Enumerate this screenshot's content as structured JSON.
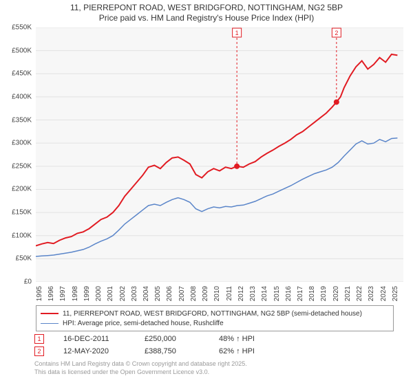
{
  "title_line1": "11, PIERREPONT ROAD, WEST BRIDGFORD, NOTTINGHAM, NG2 5BP",
  "title_line2": "Price paid vs. HM Land Registry's House Price Index (HPI)",
  "chart": {
    "type": "line",
    "background_color": "#f7f7f7",
    "grid_color": "#e2e2e2",
    "xlim_years": [
      1995,
      2026
    ],
    "ylim": [
      0,
      550000
    ],
    "ytick_step": 50000,
    "yticks": [
      "£0",
      "£50K",
      "£100K",
      "£150K",
      "£200K",
      "£250K",
      "£300K",
      "£350K",
      "£400K",
      "£450K",
      "£500K",
      "£550K"
    ],
    "xticks": [
      "1995",
      "1996",
      "1997",
      "1998",
      "1999",
      "2000",
      "2001",
      "2002",
      "2003",
      "2004",
      "2005",
      "2006",
      "2007",
      "2008",
      "2009",
      "2010",
      "2011",
      "2012",
      "2013",
      "2014",
      "2015",
      "2016",
      "2017",
      "2018",
      "2019",
      "2020",
      "2021",
      "2022",
      "2023",
      "2024",
      "2025"
    ],
    "series": [
      {
        "name": "red",
        "label": "11, PIERREPONT ROAD, WEST BRIDGFORD, NOTTINGHAM, NG2 5BP (semi-detached house)",
        "color": "#e11b22",
        "width": 2,
        "points": [
          [
            1995.0,
            78000
          ],
          [
            1995.5,
            82000
          ],
          [
            1996.0,
            85000
          ],
          [
            1996.5,
            83000
          ],
          [
            1997.0,
            90000
          ],
          [
            1997.5,
            95000
          ],
          [
            1998.0,
            98000
          ],
          [
            1998.5,
            105000
          ],
          [
            1999.0,
            108000
          ],
          [
            1999.5,
            115000
          ],
          [
            2000.0,
            125000
          ],
          [
            2000.5,
            135000
          ],
          [
            2001.0,
            140000
          ],
          [
            2001.5,
            150000
          ],
          [
            2002.0,
            165000
          ],
          [
            2002.5,
            185000
          ],
          [
            2003.0,
            200000
          ],
          [
            2003.5,
            215000
          ],
          [
            2004.0,
            230000
          ],
          [
            2004.5,
            248000
          ],
          [
            2005.0,
            252000
          ],
          [
            2005.5,
            245000
          ],
          [
            2006.0,
            258000
          ],
          [
            2006.5,
            268000
          ],
          [
            2007.0,
            270000
          ],
          [
            2007.5,
            263000
          ],
          [
            2008.0,
            255000
          ],
          [
            2008.5,
            232000
          ],
          [
            2009.0,
            225000
          ],
          [
            2009.5,
            238000
          ],
          [
            2010.0,
            245000
          ],
          [
            2010.5,
            240000
          ],
          [
            2011.0,
            248000
          ],
          [
            2011.5,
            245000
          ],
          [
            2011.96,
            250000
          ],
          [
            2012.5,
            248000
          ],
          [
            2013.0,
            255000
          ],
          [
            2013.5,
            260000
          ],
          [
            2014.0,
            270000
          ],
          [
            2014.5,
            278000
          ],
          [
            2015.0,
            285000
          ],
          [
            2015.5,
            293000
          ],
          [
            2016.0,
            300000
          ],
          [
            2016.5,
            308000
          ],
          [
            2017.0,
            318000
          ],
          [
            2017.5,
            325000
          ],
          [
            2018.0,
            335000
          ],
          [
            2018.5,
            345000
          ],
          [
            2019.0,
            355000
          ],
          [
            2019.5,
            365000
          ],
          [
            2020.0,
            378000
          ],
          [
            2020.36,
            388750
          ],
          [
            2020.7,
            400000
          ],
          [
            2021.0,
            420000
          ],
          [
            2021.5,
            445000
          ],
          [
            2022.0,
            465000
          ],
          [
            2022.5,
            478000
          ],
          [
            2023.0,
            460000
          ],
          [
            2023.5,
            470000
          ],
          [
            2024.0,
            485000
          ],
          [
            2024.5,
            475000
          ],
          [
            2025.0,
            492000
          ],
          [
            2025.5,
            490000
          ]
        ]
      },
      {
        "name": "blue",
        "label": "HPI: Average price, semi-detached house, Rushcliffe",
        "color": "#5a85c9",
        "width": 1.5,
        "points": [
          [
            1995.0,
            55000
          ],
          [
            1995.5,
            56000
          ],
          [
            1996.0,
            57000
          ],
          [
            1996.5,
            58000
          ],
          [
            1997.0,
            60000
          ],
          [
            1997.5,
            62000
          ],
          [
            1998.0,
            64000
          ],
          [
            1998.5,
            67000
          ],
          [
            1999.0,
            70000
          ],
          [
            1999.5,
            75000
          ],
          [
            2000.0,
            82000
          ],
          [
            2000.5,
            88000
          ],
          [
            2001.0,
            93000
          ],
          [
            2001.5,
            100000
          ],
          [
            2002.0,
            112000
          ],
          [
            2002.5,
            125000
          ],
          [
            2003.0,
            135000
          ],
          [
            2003.5,
            145000
          ],
          [
            2004.0,
            155000
          ],
          [
            2004.5,
            165000
          ],
          [
            2005.0,
            168000
          ],
          [
            2005.5,
            165000
          ],
          [
            2006.0,
            172000
          ],
          [
            2006.5,
            178000
          ],
          [
            2007.0,
            182000
          ],
          [
            2007.5,
            178000
          ],
          [
            2008.0,
            172000
          ],
          [
            2008.5,
            158000
          ],
          [
            2009.0,
            152000
          ],
          [
            2009.5,
            158000
          ],
          [
            2010.0,
            162000
          ],
          [
            2010.5,
            160000
          ],
          [
            2011.0,
            163000
          ],
          [
            2011.5,
            162000
          ],
          [
            2012.0,
            165000
          ],
          [
            2012.5,
            166000
          ],
          [
            2013.0,
            170000
          ],
          [
            2013.5,
            174000
          ],
          [
            2014.0,
            180000
          ],
          [
            2014.5,
            186000
          ],
          [
            2015.0,
            190000
          ],
          [
            2015.5,
            196000
          ],
          [
            2016.0,
            202000
          ],
          [
            2016.5,
            208000
          ],
          [
            2017.0,
            215000
          ],
          [
            2017.5,
            222000
          ],
          [
            2018.0,
            228000
          ],
          [
            2018.5,
            234000
          ],
          [
            2019.0,
            238000
          ],
          [
            2019.5,
            242000
          ],
          [
            2020.0,
            248000
          ],
          [
            2020.5,
            258000
          ],
          [
            2021.0,
            272000
          ],
          [
            2021.5,
            285000
          ],
          [
            2022.0,
            298000
          ],
          [
            2022.5,
            305000
          ],
          [
            2023.0,
            298000
          ],
          [
            2023.5,
            300000
          ],
          [
            2024.0,
            308000
          ],
          [
            2024.5,
            303000
          ],
          [
            2025.0,
            310000
          ],
          [
            2025.5,
            311000
          ]
        ]
      }
    ],
    "markers": [
      {
        "id": "1",
        "year": 2011.96,
        "value": 250000
      },
      {
        "id": "2",
        "year": 2020.36,
        "value": 388750
      }
    ],
    "annot_box_size": 13
  },
  "legend": {
    "border_color": "#999999",
    "items": [
      {
        "color": "#e11b22",
        "text": "11, PIERREPONT ROAD, WEST BRIDGFORD, NOTTINGHAM, NG2 5BP (semi-detached house)"
      },
      {
        "color": "#5a85c9",
        "text": "HPI: Average price, semi-detached house, Rushcliffe"
      }
    ]
  },
  "events": [
    {
      "badge": "1",
      "date": "16-DEC-2011",
      "price": "£250,000",
      "pct": "48% ↑ HPI"
    },
    {
      "badge": "2",
      "date": "12-MAY-2020",
      "price": "£388,750",
      "pct": "62% ↑ HPI"
    }
  ],
  "footer_line1": "Contains HM Land Registry data © Crown copyright and database right 2025.",
  "footer_line2": "This data is licensed under the Open Government Licence v3.0.",
  "colors": {
    "text": "#333333",
    "muted": "#9a9a9a",
    "red": "#e11b22",
    "blue": "#5a85c9"
  }
}
